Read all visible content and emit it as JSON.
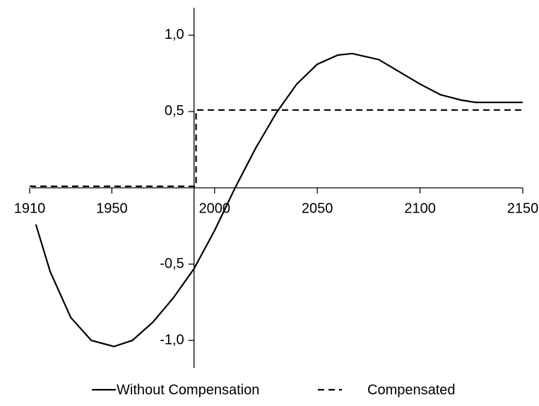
{
  "chart_data": {
    "type": "line",
    "xlim": [
      1910,
      2150
    ],
    "ylim": [
      -1.18,
      1.18
    ],
    "xticks": [
      1910,
      1950,
      2000,
      2050,
      2100,
      2150
    ],
    "yticks": [
      {
        "value": -1.0,
        "label": "-1,0"
      },
      {
        "value": -0.5,
        "label": "-0,5"
      },
      {
        "value": 0.5,
        "label": "0,5"
      },
      {
        "value": 1.0,
        "label": "1,0"
      }
    ],
    "y_axis_at": 1990,
    "x_axis_at": 0,
    "grid": false,
    "legend": "bottom",
    "series": [
      {
        "name": "Without Compensation",
        "color": "#000000",
        "dash": "solid",
        "x": [
          1913,
          1920,
          1930,
          1940,
          1951,
          1960,
          1970,
          1980,
          1990,
          2000,
          2010,
          2020,
          2030,
          2040,
          2050,
          2060,
          2067,
          2080,
          2090,
          2100,
          2110,
          2120,
          2127,
          2150
        ],
        "values": [
          -0.24,
          -0.55,
          -0.85,
          -1.0,
          -1.04,
          -1.0,
          -0.88,
          -0.72,
          -0.53,
          -0.28,
          0.0,
          0.26,
          0.49,
          0.68,
          0.81,
          0.87,
          0.88,
          0.84,
          0.76,
          0.68,
          0.61,
          0.575,
          0.56,
          0.56
        ]
      },
      {
        "name": "Compensated",
        "color": "#000000",
        "dash": "dashed",
        "x": [
          1910,
          1991,
          1991,
          2150
        ],
        "values": [
          0.01,
          0.01,
          0.51,
          0.51
        ]
      }
    ]
  }
}
